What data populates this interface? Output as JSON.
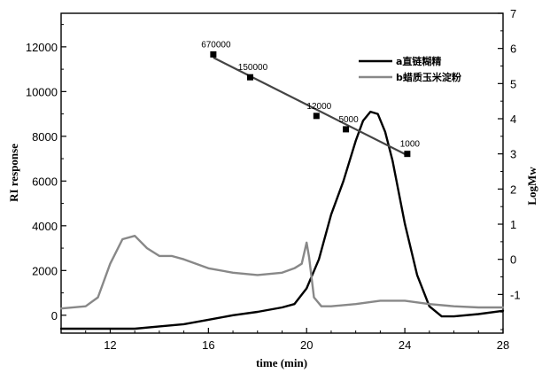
{
  "chart_data": {
    "type": "line",
    "xlabel": "time (min)",
    "ylabel": "RI response",
    "y2label": "LogMw",
    "xlim": [
      10,
      28
    ],
    "ylim": [
      -800,
      13500
    ],
    "y2lim": [
      -2.1,
      7
    ],
    "xticks": [
      12,
      16,
      20,
      24,
      28
    ],
    "yticks": [
      0,
      2000,
      4000,
      6000,
      8000,
      10000,
      12000
    ],
    "y2ticks": [
      -1,
      0,
      1,
      2,
      3,
      4,
      5,
      6,
      7
    ],
    "legend_position": "top-right",
    "series": [
      {
        "name": "a直链糊精",
        "color": "#000000",
        "axis": "left",
        "x": [
          10,
          11,
          12,
          13,
          14,
          15,
          16,
          17,
          18,
          19,
          19.5,
          20,
          20.5,
          21,
          21.5,
          22,
          22.3,
          22.6,
          22.9,
          23.2,
          23.5,
          24,
          24.5,
          25,
          25.5,
          26,
          27,
          28
        ],
        "y": [
          -600,
          -600,
          -600,
          -600,
          -500,
          -400,
          -200,
          0,
          150,
          350,
          500,
          1200,
          2500,
          4500,
          6000,
          7800,
          8700,
          9100,
          9000,
          8200,
          6900,
          4100,
          1800,
          400,
          -50,
          -50,
          50,
          200
        ]
      },
      {
        "name": "b蜡质玉米淀粉",
        "color": "#888888",
        "axis": "left",
        "x": [
          10,
          11,
          11.5,
          12,
          12.5,
          13,
          13.5,
          14,
          14.5,
          15,
          16,
          17,
          18,
          19,
          19.5,
          19.8,
          20,
          20.1,
          20.3,
          20.6,
          21,
          22,
          23,
          24,
          25,
          26,
          27,
          28
        ],
        "y": [
          300,
          400,
          800,
          2300,
          3400,
          3550,
          3000,
          2650,
          2650,
          2500,
          2100,
          1900,
          1800,
          1900,
          2100,
          2300,
          3250,
          2600,
          800,
          400,
          400,
          500,
          650,
          650,
          500,
          400,
          350,
          350
        ]
      }
    ],
    "standards": {
      "axis": "right",
      "points": [
        {
          "label": "670000",
          "x": 16.2,
          "logMw": 5.83
        },
        {
          "label": "150000",
          "x": 17.7,
          "logMw": 5.18
        },
        {
          "label": "12000",
          "x": 20.4,
          "logMw": 4.08
        },
        {
          "label": "5000",
          "x": 21.6,
          "logMw": 3.7
        },
        {
          "label": "1000",
          "x": 24.1,
          "logMw": 3.0
        }
      ],
      "fit": {
        "x": [
          16.2,
          24.1
        ],
        "logMw": [
          5.74,
          2.96
        ]
      }
    }
  }
}
